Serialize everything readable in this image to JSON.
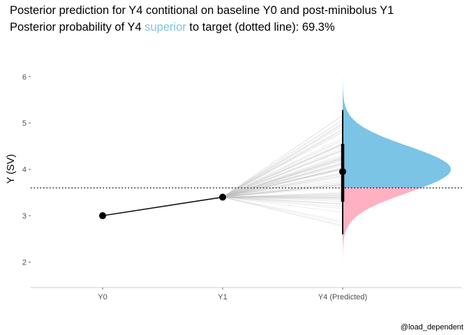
{
  "chart_data": {
    "type": "line",
    "title_line1": "Posterior prediction for Y4 contitional on baseline Y0 and post-minibolus Y1",
    "title_line2": {
      "prefix": "Posterior probability of Y4 ",
      "highlight": "superior",
      "suffix": " to target (dotted line): 69.3%"
    },
    "ylabel": "Y (SV)",
    "caption": "@load_dependent",
    "categories": [
      "Y0",
      "Y1",
      "Y4 (Predicted)"
    ],
    "yticks": [
      2,
      3,
      4,
      5,
      6
    ],
    "ylim": [
      1.45,
      6.75
    ],
    "target": 3.6,
    "observed": {
      "Y0": 3.0,
      "Y1": 3.4
    },
    "prediction": {
      "median": 3.95,
      "inner_interval": [
        3.3,
        4.55
      ],
      "outer_interval": [
        2.6,
        5.28
      ],
      "range": [
        1.65,
        6.62
      ],
      "mode": 4.0,
      "sd": 0.5,
      "probability_superior": "69.3%"
    },
    "colors": {
      "superior": "#7BC4E6",
      "inferior": "#FFB0C1",
      "highlight_text": "#7BC4E6",
      "points": "#000000",
      "draws": "#bfbfbf"
    },
    "grid": false,
    "legend": "none"
  }
}
